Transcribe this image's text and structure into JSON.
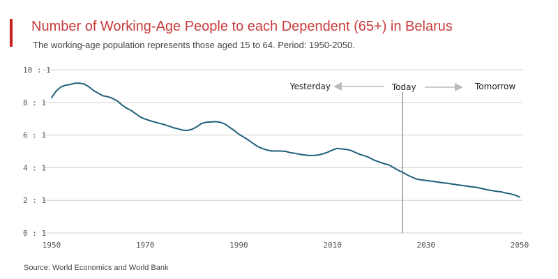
{
  "header": {
    "title": "Number of Working-Age People to each Dependent (65+) in Belarus",
    "subtitle": "The working-age population represents those aged 15 to 64. Period: 1950-2050."
  },
  "footer": {
    "source": "Source: World Economics and World Bank"
  },
  "colors": {
    "accent": "#cc1f1f",
    "title": "#c83c3c",
    "line": "#1f5f7a",
    "grid": "#d0d0d0",
    "marker": "#999999",
    "arrow": "#bbbbbb"
  },
  "chart_data": {
    "type": "line",
    "title": "Number of Working-Age People to each Dependent (65+) in Belarus",
    "subtitle": "The working-age population represents those aged 15 to 64. Period: 1950-2050.",
    "xlabel": "",
    "ylabel": "",
    "xlim": [
      1950,
      2050
    ],
    "ylim": [
      0,
      10
    ],
    "grid": true,
    "x_ticks": [
      1950,
      1970,
      1990,
      2010,
      2030,
      2050
    ],
    "x_tick_labels": [
      "1950",
      "1970",
      "1990",
      "2010",
      "2030",
      "2050"
    ],
    "y_ticks": [
      0,
      2,
      4,
      6,
      8,
      10
    ],
    "y_tick_labels": [
      "0 : 1",
      "2 : 1",
      "4 : 1",
      "6 : 1",
      "8 : 1",
      "10 : 1"
    ],
    "annotations": {
      "today_year": 2025,
      "today_label": "Today",
      "past_label": "Yesterday",
      "future_label": "Tomorrow"
    },
    "series": [
      {
        "x": [
          1950,
          1951,
          1952,
          1953,
          1954,
          1955,
          1956,
          1957,
          1958,
          1959,
          1960,
          1961,
          1962,
          1963,
          1964,
          1965,
          1966,
          1967,
          1968,
          1969,
          1970,
          1971,
          1972,
          1973,
          1974,
          1975,
          1976,
          1977,
          1978,
          1979,
          1980,
          1981,
          1982,
          1983,
          1984,
          1985,
          1986,
          1987,
          1988,
          1989,
          1990,
          1991,
          1992,
          1993,
          1994,
          1995,
          1996,
          1997,
          1998,
          1999,
          2000,
          2001,
          2002,
          2003,
          2004,
          2005,
          2006,
          2007,
          2008,
          2009,
          2010,
          2011,
          2012,
          2013,
          2014,
          2015,
          2016,
          2017,
          2018,
          2019,
          2020,
          2021,
          2022,
          2023,
          2024,
          2025,
          2026,
          2027,
          2028,
          2029,
          2030,
          2031,
          2032,
          2033,
          2034,
          2035,
          2036,
          2037,
          2038,
          2039,
          2040,
          2041,
          2042,
          2043,
          2044,
          2045,
          2046,
          2047,
          2048,
          2049,
          2050
        ],
        "values": [
          8.3,
          8.7,
          8.95,
          9.05,
          9.1,
          9.18,
          9.18,
          9.12,
          8.95,
          8.72,
          8.55,
          8.4,
          8.35,
          8.25,
          8.1,
          7.85,
          7.65,
          7.5,
          7.3,
          7.1,
          6.98,
          6.88,
          6.8,
          6.72,
          6.65,
          6.55,
          6.45,
          6.38,
          6.3,
          6.28,
          6.35,
          6.5,
          6.7,
          6.78,
          6.8,
          6.82,
          6.78,
          6.68,
          6.48,
          6.28,
          6.05,
          5.88,
          5.7,
          5.5,
          5.3,
          5.18,
          5.08,
          5.02,
          5.02,
          5.02,
          5.0,
          4.92,
          4.88,
          4.82,
          4.78,
          4.75,
          4.75,
          4.78,
          4.85,
          4.95,
          5.08,
          5.18,
          5.15,
          5.12,
          5.05,
          4.92,
          4.8,
          4.72,
          4.6,
          4.45,
          4.35,
          4.25,
          4.18,
          4.02,
          3.85,
          3.72,
          3.55,
          3.42,
          3.3,
          3.25,
          3.22,
          3.18,
          3.14,
          3.1,
          3.06,
          3.02,
          2.98,
          2.94,
          2.9,
          2.86,
          2.82,
          2.78,
          2.72,
          2.65,
          2.6,
          2.55,
          2.52,
          2.45,
          2.4,
          2.32,
          2.2
        ]
      }
    ]
  }
}
